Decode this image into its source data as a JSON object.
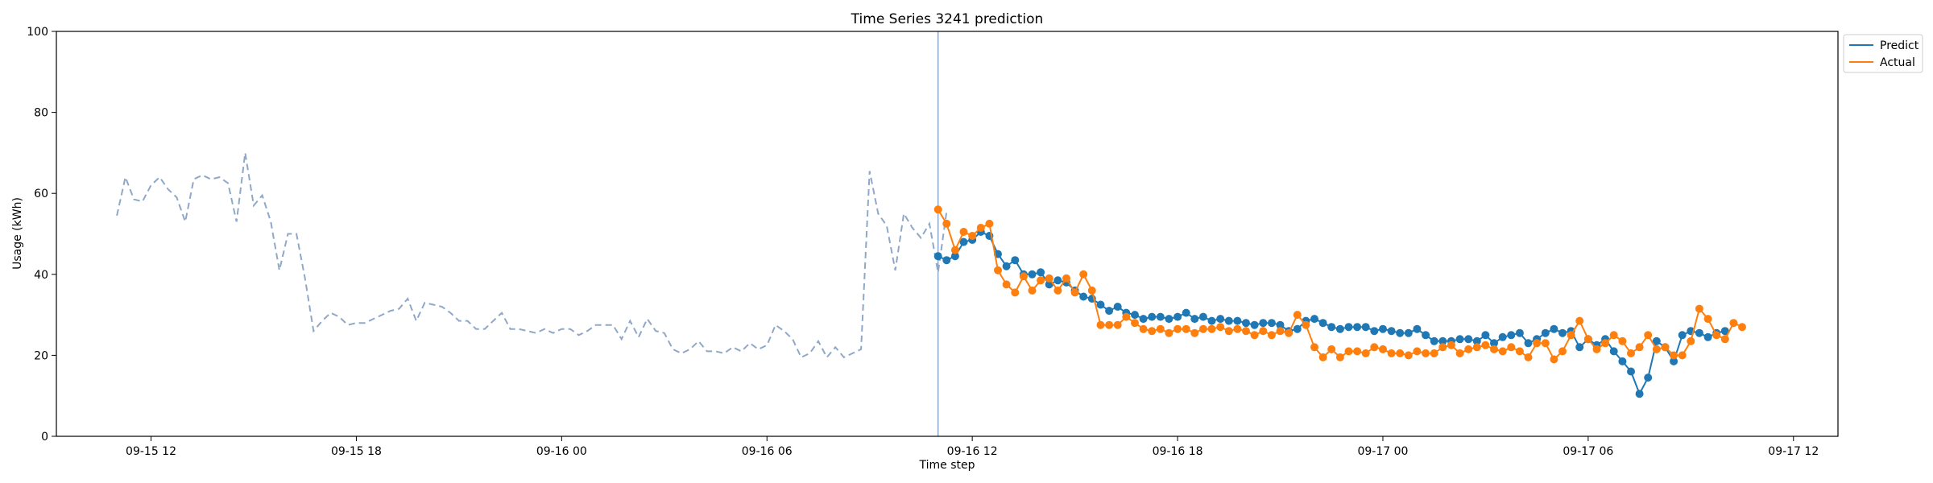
{
  "chart_data": {
    "type": "line",
    "title": "Time Series 3241 prediction",
    "xlabel": "Time step",
    "ylabel": "Usage (kWh)",
    "ylim": [
      0,
      100
    ],
    "yticks": [
      0,
      20,
      40,
      60,
      80,
      100
    ],
    "xlim": [
      "2024-09-15 09:14",
      "2024-09-17 13:18"
    ],
    "xticks": [
      {
        "t": "2024-09-15 12:00",
        "label": "09-15 12"
      },
      {
        "t": "2024-09-15 18:00",
        "label": "09-15 18"
      },
      {
        "t": "2024-09-16 00:00",
        "label": "09-16 00"
      },
      {
        "t": "2024-09-16 06:00",
        "label": "09-16 06"
      },
      {
        "t": "2024-09-16 12:00",
        "label": "09-16 12"
      },
      {
        "t": "2024-09-16 18:00",
        "label": "09-16 18"
      },
      {
        "t": "2024-09-17 00:00",
        "label": "09-17 00"
      },
      {
        "t": "2024-09-17 06:00",
        "label": "09-17 06"
      },
      {
        "t": "2024-09-17 12:00",
        "label": "09-17 12"
      }
    ],
    "forecast_start": "2024-09-16 11:00",
    "legend_position": "upper-right-outside",
    "history": {
      "start": "2024-09-15 11:00",
      "step_minutes": 15,
      "color": "#8fa8c8",
      "style": "dashed",
      "values": [
        54.5,
        64,
        58.5,
        58,
        62,
        64,
        61,
        59,
        53,
        63.5,
        64.5,
        63.5,
        64,
        62.5,
        53,
        70,
        57,
        59.5,
        53,
        41,
        50,
        50,
        39,
        26,
        28.5,
        30.5,
        29.5,
        27.5,
        28,
        28,
        29,
        30,
        31,
        31.5,
        34,
        28.5,
        33,
        32.5,
        32,
        30.5,
        28.5,
        28.5,
        26.5,
        26.5,
        28.5,
        30.5,
        26.5,
        26.5,
        26,
        25.5,
        26.5,
        25.5,
        26.5,
        26.5,
        25,
        26,
        27.5,
        27.5,
        27.5,
        24,
        28.5,
        24.5,
        29,
        26,
        25.5,
        21.5,
        20.5,
        21.5,
        23.5,
        21,
        21,
        20.5,
        22,
        21,
        23,
        21.5,
        22.5,
        27.5,
        26,
        24,
        19.5,
        20.5,
        23.5,
        19.5,
        22,
        19.5,
        20.5,
        21.5,
        65.5,
        55,
        52,
        41,
        55,
        51.5,
        49,
        52.5,
        40.5,
        55.5
      ]
    },
    "series": [
      {
        "name": "Predict",
        "color": "#1f77b4",
        "start": "2024-09-16 11:00",
        "step_minutes": 15,
        "values": [
          44.5,
          43.5,
          44.5,
          48,
          48.5,
          50.5,
          49.5,
          45,
          42,
          43.5,
          40,
          40,
          40.5,
          37.5,
          38.5,
          38,
          36,
          34.5,
          34,
          32.5,
          31,
          32,
          30.5,
          30,
          29,
          29.5,
          29.5,
          29,
          29.5,
          30.5,
          29,
          29.5,
          28.5,
          29,
          28.5,
          28.5,
          28,
          27.5,
          28,
          28,
          27.5,
          26,
          26.5,
          28.5,
          29,
          28,
          27,
          26.5,
          27,
          27,
          27,
          26,
          26.5,
          26,
          25.5,
          25.5,
          26.5,
          25,
          23.5,
          23.5,
          23.5,
          24,
          24,
          23.5,
          25,
          23,
          24.5,
          25,
          25.5,
          23,
          24,
          25.5,
          26.5,
          25.5,
          26,
          22,
          24,
          22.5,
          24,
          21,
          18.5,
          16,
          10.5,
          14.5,
          23.5,
          22,
          18.5,
          25,
          26,
          25.5,
          24.5,
          25.5,
          26
        ]
      },
      {
        "name": "Actual",
        "color": "#ff7f0e",
        "start": "2024-09-16 11:00",
        "step_minutes": 15,
        "values": [
          56,
          52.5,
          46,
          50.5,
          49.5,
          51.5,
          52.5,
          41,
          37.5,
          35.5,
          39.5,
          36,
          38.5,
          39,
          36,
          39,
          35.5,
          40,
          36,
          27.5,
          27.5,
          27.5,
          29.5,
          28,
          26.5,
          26,
          26.5,
          25.5,
          26.5,
          26.5,
          25.5,
          26.5,
          26.5,
          27,
          26,
          26.5,
          26,
          25,
          26,
          25,
          26,
          25.5,
          30,
          27.5,
          22,
          19.5,
          21.5,
          19.5,
          21,
          21,
          20.5,
          22,
          21.5,
          20.5,
          20.5,
          20,
          21,
          20.5,
          20.5,
          22,
          22.5,
          20.5,
          21.5,
          22,
          22.5,
          21.5,
          21,
          22,
          21,
          19.5,
          23,
          23,
          19,
          21,
          25,
          28.5,
          24,
          21.5,
          23,
          25,
          23.5,
          20.5,
          22,
          25,
          21.5,
          22,
          20,
          20,
          23.5,
          31.5,
          29,
          25,
          24,
          28,
          27
        ]
      }
    ]
  }
}
